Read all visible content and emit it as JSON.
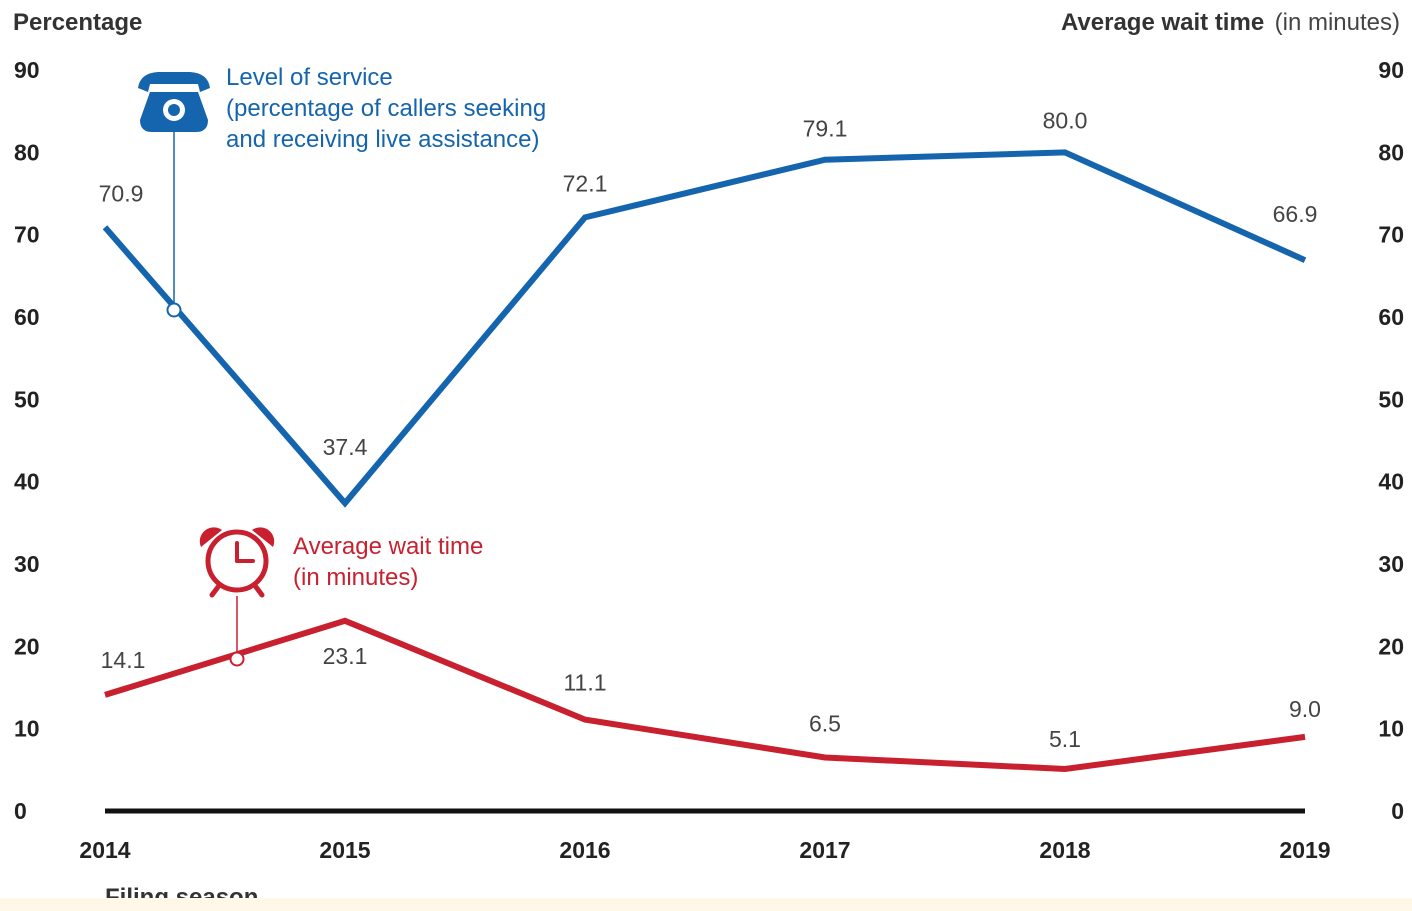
{
  "chart_data": {
    "type": "line",
    "xlabel": "Filing season",
    "ylabel_left": "Percentage",
    "ylabel_right": "Average wait time",
    "ylabel_right_unit": "(in minutes)",
    "ylim": [
      0,
      90
    ],
    "y_ticks": [
      0,
      10,
      20,
      30,
      40,
      50,
      60,
      70,
      80,
      90
    ],
    "grid": false,
    "categories": [
      "2014",
      "2015",
      "2016",
      "2017",
      "2018",
      "2019"
    ],
    "series": [
      {
        "name": "Level of service",
        "annotation_lines": [
          "Level of service",
          "(percentage of callers seeking",
          "and receiving live assistance)"
        ],
        "axis": "left",
        "color": "#1565ae",
        "icon": "telephone-icon",
        "values": [
          70.9,
          37.4,
          72.1,
          79.1,
          80.0,
          66.9
        ],
        "labels": [
          "70.9",
          "37.4",
          "72.1",
          "79.1",
          "80.0",
          "66.9"
        ]
      },
      {
        "name": "Average wait time",
        "annotation_lines": [
          "Average wait time",
          "(in minutes)"
        ],
        "axis": "right",
        "color": "#c8202f",
        "icon": "alarm-clock-icon",
        "values": [
          14.1,
          23.1,
          11.1,
          6.5,
          5.1,
          9.0
        ],
        "labels": [
          "14.1",
          "23.1",
          "11.1",
          "6.5",
          "5.1",
          "9.0"
        ]
      }
    ]
  }
}
